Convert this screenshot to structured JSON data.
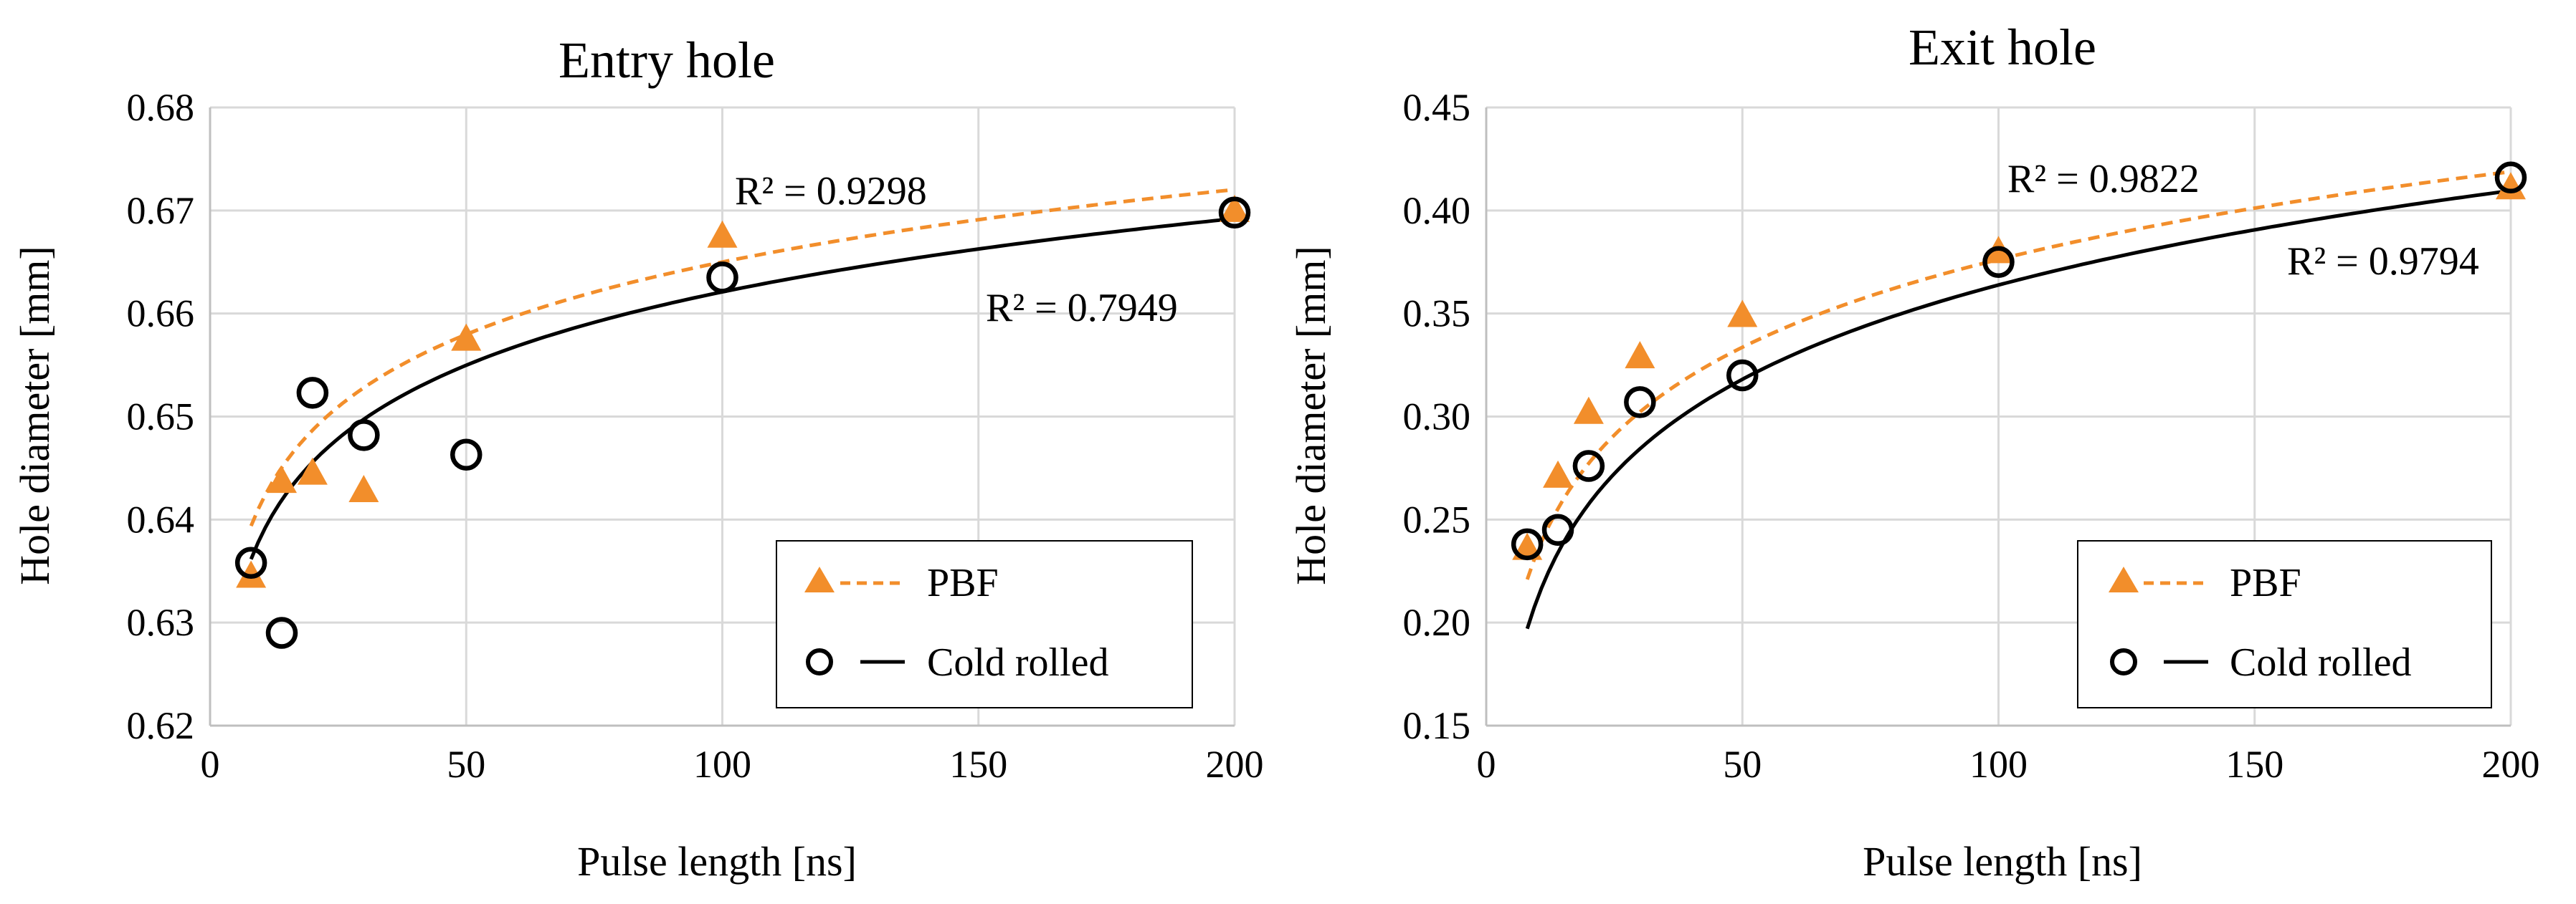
{
  "chart_data": [
    {
      "type": "scatter",
      "title": "Entry hole",
      "xlabel": "Pulse length [ns]",
      "ylabel": "Hole diameter [mm]",
      "xlim": [
        0,
        200
      ],
      "ylim": [
        0.62,
        0.68
      ],
      "xticks": [
        0,
        50,
        100,
        150,
        200
      ],
      "xtick_labels": [
        "0",
        "50",
        "100",
        "150",
        "200"
      ],
      "yticks": [
        0.62,
        0.63,
        0.64,
        0.65,
        0.66,
        0.67,
        0.68
      ],
      "ytick_labels": [
        "0.62",
        "0.63",
        "0.64",
        "0.65",
        "0.66",
        "0.67",
        "0.68"
      ],
      "grid": true,
      "legend_position": "bottom-right",
      "series": [
        {
          "name": "PBF",
          "marker": "triangle",
          "color": "#f28e2b",
          "x": [
            8,
            14,
            20,
            30,
            50,
            100,
            200
          ],
          "y": [
            0.6345,
            0.6437,
            0.6445,
            0.6428,
            0.6575,
            0.6675,
            0.67
          ],
          "trendline": {
            "type": "logarithmic",
            "style": "dashed",
            "r2_label": "R² = 0.9298",
            "a": 0.6183,
            "b": 0.01014
          }
        },
        {
          "name": "Cold rolled",
          "marker": "open-circle",
          "color": "#000000",
          "x": [
            8,
            14,
            20,
            30,
            50,
            100,
            200
          ],
          "y": [
            0.6358,
            0.629,
            0.6523,
            0.6482,
            0.6463,
            0.6635,
            0.6698
          ],
          "trendline": {
            "type": "logarithmic",
            "style": "solid",
            "r2_label": "R² = 0.7949",
            "a": 0.6148,
            "b": 0.01027
          }
        }
      ]
    },
    {
      "type": "scatter",
      "title": "Exit hole",
      "xlabel": "Pulse length [ns]",
      "ylabel": "Hole diameter [mm]",
      "xlim": [
        0,
        200
      ],
      "ylim": [
        0.15,
        0.45
      ],
      "xticks": [
        0,
        50,
        100,
        150,
        200
      ],
      "xtick_labels": [
        "0",
        "50",
        "100",
        "150",
        "200"
      ],
      "yticks": [
        0.15,
        0.2,
        0.25,
        0.3,
        0.35,
        0.4,
        0.45
      ],
      "ytick_labels": [
        "0.15",
        "0.20",
        "0.25",
        "0.30",
        "0.35",
        "0.40",
        "0.45"
      ],
      "grid": true,
      "legend_position": "bottom-right",
      "series": [
        {
          "name": "PBF",
          "marker": "triangle",
          "color": "#f28e2b",
          "x": [
            8,
            14,
            20,
            30,
            50,
            100,
            200
          ],
          "y": [
            0.236,
            0.271,
            0.302,
            0.329,
            0.349,
            0.38,
            0.411
          ],
          "trendline": {
            "type": "logarithmic",
            "style": "dashed",
            "r2_label": "R² = 0.9822",
            "a": 0.0931,
            "b": 0.06148
          }
        },
        {
          "name": "Cold rolled",
          "marker": "open-circle",
          "color": "#000000",
          "x": [
            8,
            14,
            20,
            30,
            50,
            100,
            200
          ],
          "y": [
            0.238,
            0.245,
            0.276,
            0.307,
            0.32,
            0.375,
            0.416
          ],
          "trendline": {
            "type": "logarithmic",
            "style": "solid",
            "r2_label": "R² = 0.9794",
            "a": 0.0597,
            "b": 0.06604
          }
        }
      ]
    }
  ]
}
